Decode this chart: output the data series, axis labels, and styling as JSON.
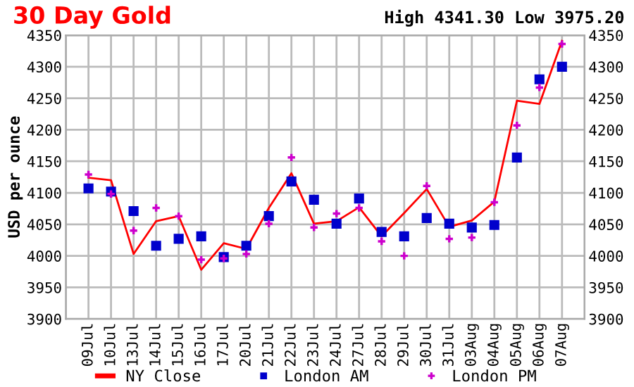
{
  "chart_data": {
    "type": "line",
    "title": "30 Day Gold",
    "ylabel": "USD per ounce",
    "annotations": [
      "High 4341.30 Low 3975.20"
    ],
    "categories": [
      "09Jul",
      "10Jul",
      "13Jul",
      "14Jul",
      "15Jul",
      "16Jul",
      "17Jul",
      "20Jul",
      "21Jul",
      "22Jul",
      "23Jul",
      "24Jul",
      "27Jul",
      "28Jul",
      "29Jul",
      "30Jul",
      "31Jul",
      "03Aug",
      "04Aug",
      "05Aug",
      "06Aug",
      "07Aug"
    ],
    "series": [
      {
        "name": "NY Close",
        "color": "#ff0000",
        "marker": "none",
        "values": [
          4124,
          4120,
          4003,
          4055,
          4063,
          3978,
          4020,
          4011,
          4076,
          4131,
          4051,
          4055,
          4077,
          4031,
          4068,
          4106,
          4046,
          4056,
          4086,
          4246,
          4241,
          4341
        ]
      },
      {
        "name": "London AM",
        "type": "scatter",
        "color": "#0000cc",
        "marker": "square",
        "values": [
          4107,
          4102,
          4071,
          4016,
          4027,
          4031,
          3998,
          4016,
          4063,
          4118,
          4089,
          4051,
          4091,
          4038,
          4031,
          4060,
          4051,
          4045,
          4049,
          4156,
          4280,
          4300
        ]
      },
      {
        "name": "London PM",
        "type": "scatter",
        "color": "#cc00cc",
        "marker": "cross",
        "values": [
          4129,
          4098,
          4040,
          4076,
          4063,
          3994,
          3996,
          4003,
          4051,
          4156,
          4045,
          4067,
          4076,
          4023,
          4000,
          4111,
          4027,
          4029,
          4085,
          4207,
          4267,
          4336
        ]
      }
    ],
    "ylim": [
      3900,
      4350
    ],
    "yticks": [
      3900,
      3950,
      4000,
      4050,
      4100,
      4150,
      4200,
      4250,
      4300,
      4350
    ],
    "y2lim": [
      3900,
      4350
    ],
    "y2ticks": [
      3900,
      3950,
      4000,
      4050,
      4100,
      4150,
      4200,
      4250,
      4300,
      4350
    ],
    "grid": true,
    "legend": "bottom"
  }
}
